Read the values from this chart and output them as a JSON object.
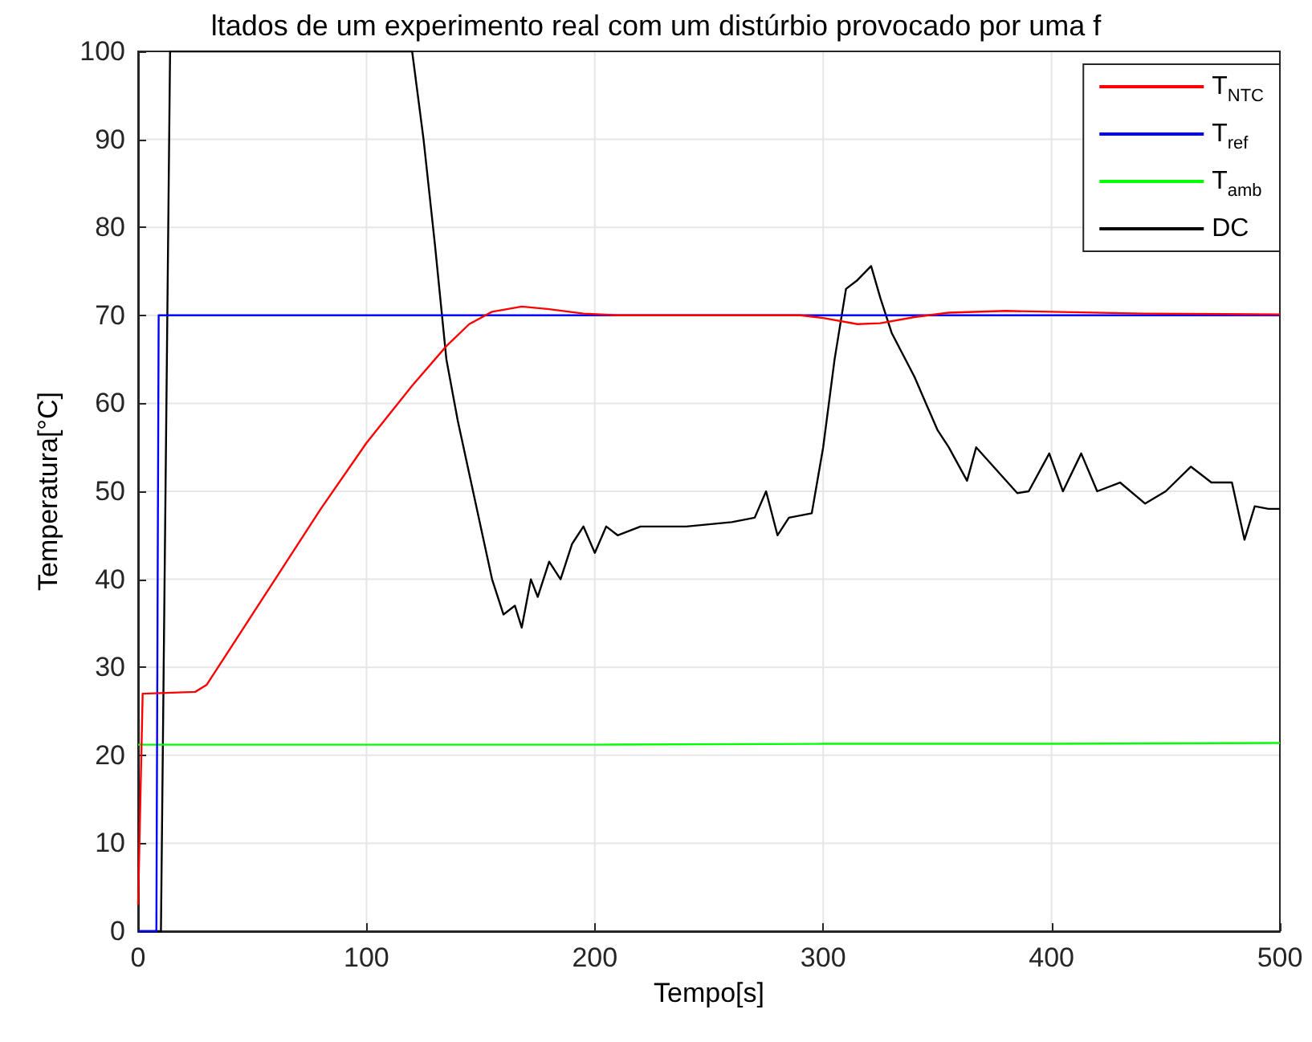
{
  "chart_data": {
    "type": "line",
    "title": "ltados de um experimento real com um distúrbio provocado por uma f",
    "xlabel": "Tempo[s]",
    "ylabel": "Temperatura[°C]",
    "xlim": [
      0,
      500
    ],
    "xticks": [
      0,
      100,
      200,
      300,
      400,
      500
    ],
    "ylim": [
      0,
      100
    ],
    "yticks": [
      0,
      10,
      20,
      30,
      40,
      50,
      60,
      70,
      80,
      90,
      100
    ],
    "grid": true,
    "legend": "top right",
    "marker": "none",
    "line_style": "solid",
    "series": [
      {
        "name": "T$_{NTC}$",
        "color": "#ff0000",
        "x": [
          0,
          2,
          25,
          30,
          40,
          60,
          80,
          100,
          120,
          135,
          145,
          155,
          168,
          180,
          195,
          210,
          290,
          300,
          315,
          325,
          340,
          355,
          380,
          400,
          440,
          500
        ],
        "values": [
          3,
          27,
          27.2,
          28,
          32,
          40,
          48,
          55.5,
          62,
          66.5,
          69,
          70.4,
          71,
          70.7,
          70.2,
          70,
          70,
          69.7,
          69,
          69.1,
          69.8,
          70.3,
          70.5,
          70.4,
          70.2,
          70.1
        ]
      },
      {
        "name": "T$_{ref}$",
        "color": "#0000ff",
        "x": [
          0,
          8,
          9,
          500
        ],
        "values": [
          0,
          0,
          70,
          70
        ]
      },
      {
        "name": "T$_{amb}$",
        "color": "#00ff00",
        "x": [
          0,
          200,
          300,
          400,
          500
        ],
        "values": [
          21.2,
          21.2,
          21.3,
          21.3,
          21.4
        ]
      },
      {
        "name": "DC",
        "color": "#000000",
        "x": [
          0,
          10,
          14,
          120,
          125,
          130,
          135,
          140,
          145,
          150,
          155,
          160,
          165,
          168,
          172,
          175,
          180,
          185,
          190,
          195,
          200,
          205,
          210,
          220,
          230,
          240,
          260,
          270,
          275,
          280,
          285,
          295,
          300,
          305,
          310,
          315,
          321,
          325,
          330,
          340,
          345,
          350,
          355,
          363,
          367,
          385,
          390,
          399,
          405,
          413,
          420,
          430,
          441,
          450,
          461,
          470,
          479,
          484.5,
          489,
          495,
          500
        ],
        "values": [
          0,
          0,
          100,
          100,
          90,
          78,
          65,
          58,
          52,
          46,
          40,
          36,
          37,
          34.5,
          40,
          38,
          42,
          40,
          44,
          46,
          43,
          46,
          45,
          46,
          46,
          46,
          46.5,
          47,
          50,
          45,
          47,
          47.5,
          55,
          65,
          73,
          74,
          75.6,
          72,
          68,
          63,
          60,
          57,
          55,
          51.2,
          55,
          49.8,
          50,
          54.3,
          50,
          54.3,
          50,
          51,
          48.6,
          50,
          52.8,
          51,
          51,
          44.5,
          48.3,
          48,
          48
        ]
      }
    ]
  }
}
